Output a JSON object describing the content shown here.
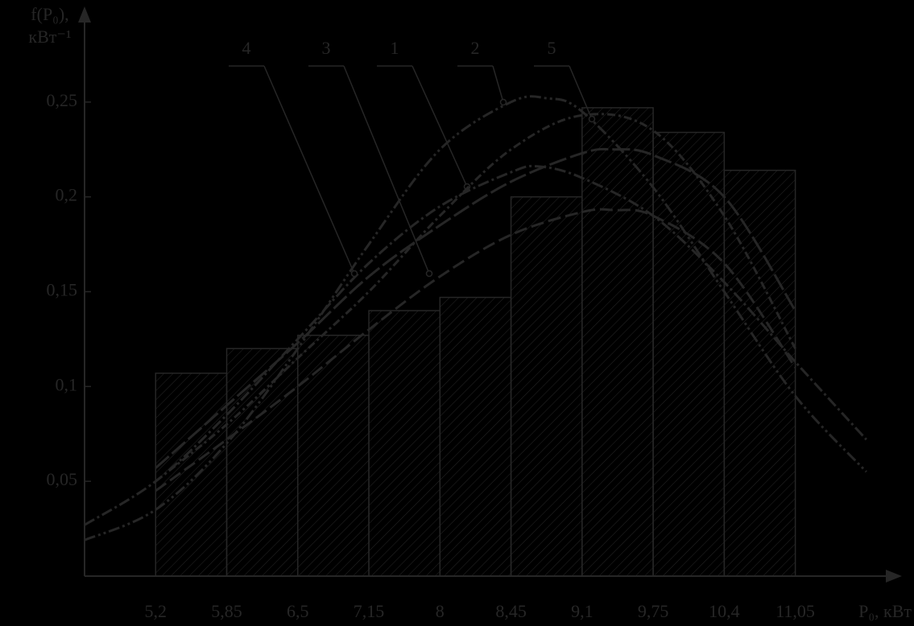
{
  "chart_data": {
    "type": "histogram",
    "y_label": [
      "f(P₀),",
      "кВт⁻¹"
    ],
    "x_label": "P₀, кВт",
    "bins": [
      "5,2",
      "5,85",
      "6,5",
      "7,15",
      "8",
      "8,45",
      "9,1",
      "9,75",
      "10,4",
      "11,05"
    ],
    "counts": [
      0.107,
      0.12,
      0.127,
      0.14,
      0.147,
      0.2,
      0.247,
      0.234,
      0.214
    ],
    "color": "#262626",
    "ylim": [
      0,
      0.3
    ],
    "yticks": [
      {
        "value": 0.05,
        "label": "0,05"
      },
      {
        "value": 0.1,
        "label": "0,1"
      },
      {
        "value": 0.15,
        "label": "0,15"
      },
      {
        "value": 0.2,
        "label": "0,2"
      },
      {
        "value": 0.25,
        "label": "0,25"
      }
    ],
    "xlim": [
      -1,
      10.5
    ],
    "series": [
      {
        "name": "1",
        "color": "#262626",
        "x": [
          -1,
          0,
          1,
          2,
          3,
          4,
          5,
          5.4,
          6,
          7,
          8,
          9,
          10
        ],
        "values": [
          0.027,
          0.05,
          0.085,
          0.125,
          0.165,
          0.195,
          0.213,
          0.216,
          0.21,
          0.19,
          0.155,
          0.113,
          0.072
        ]
      },
      {
        "name": "2",
        "color": "#262626",
        "x": [
          -1,
          0,
          1,
          2,
          3,
          4,
          5,
          5.5,
          6,
          7,
          8,
          9,
          10
        ],
        "values": [
          0.019,
          0.035,
          0.07,
          0.12,
          0.175,
          0.225,
          0.25,
          0.252,
          0.245,
          0.205,
          0.15,
          0.095,
          0.055
        ]
      },
      {
        "name": "3",
        "color": "#262626",
        "x": [
          0,
          1,
          2,
          3,
          4,
          5,
          6,
          6.45,
          7,
          8,
          9
        ],
        "values": [
          0.045,
          0.072,
          0.1,
          0.13,
          0.158,
          0.18,
          0.192,
          0.193,
          0.19,
          0.165,
          0.11
        ]
      },
      {
        "name": "4",
        "color": "#262626",
        "x": [
          0,
          1,
          2,
          3,
          4,
          5,
          6,
          6.45,
          7,
          8,
          9
        ],
        "values": [
          0.057,
          0.09,
          0.123,
          0.158,
          0.185,
          0.208,
          0.223,
          0.225,
          0.222,
          0.2,
          0.14
        ]
      },
      {
        "name": "5",
        "color": "#262626",
        "x": [
          0,
          1,
          2,
          3,
          4,
          5,
          6,
          7,
          8,
          9
        ],
        "values": [
          0.05,
          0.08,
          0.115,
          0.15,
          0.19,
          0.225,
          0.243,
          0.235,
          0.19,
          0.12
        ]
      }
    ]
  }
}
